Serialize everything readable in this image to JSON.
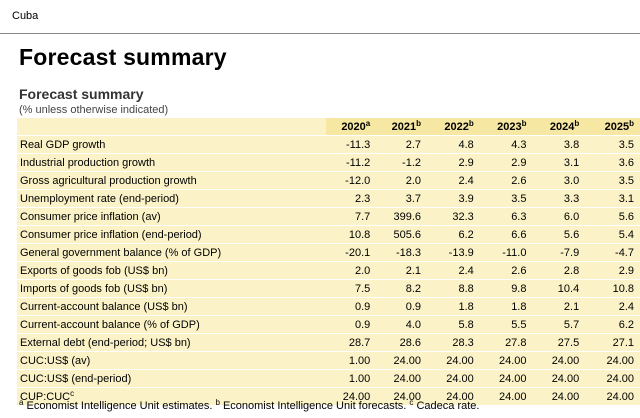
{
  "header": {
    "country": "Cuba"
  },
  "page": {
    "title": "Forecast summary",
    "table_title": "Forecast summary",
    "table_subtitle": "(% unless otherwise indicated)"
  },
  "table": {
    "columns": [
      {
        "year": "2020",
        "mark": "a"
      },
      {
        "year": "2021",
        "mark": "b"
      },
      {
        "year": "2022",
        "mark": "b"
      },
      {
        "year": "2023",
        "mark": "b"
      },
      {
        "year": "2024",
        "mark": "b"
      },
      {
        "year": "2025",
        "mark": "b"
      }
    ],
    "rows": [
      {
        "label": "Real GDP growth",
        "values": [
          "-11.3",
          "2.7",
          "4.8",
          "4.3",
          "3.8",
          "3.5"
        ]
      },
      {
        "label": "Industrial production growth",
        "values": [
          "-11.2",
          "-1.2",
          "2.9",
          "2.9",
          "3.1",
          "3.6"
        ]
      },
      {
        "label": "Gross agricultural production growth",
        "values": [
          "-12.0",
          "2.0",
          "2.4",
          "2.6",
          "3.0",
          "3.5"
        ]
      },
      {
        "label": "Unemployment rate (end-period)",
        "values": [
          "2.3",
          "3.7",
          "3.9",
          "3.5",
          "3.3",
          "3.1"
        ]
      },
      {
        "label": "Consumer price inflation (av)",
        "values": [
          "7.7",
          "399.6",
          "32.3",
          "6.3",
          "6.0",
          "5.6"
        ]
      },
      {
        "label": "Consumer price inflation (end-period)",
        "values": [
          "10.8",
          "505.6",
          "6.2",
          "6.6",
          "5.6",
          "5.4"
        ]
      },
      {
        "label": "General government balance (% of GDP)",
        "values": [
          "-20.1",
          "-18.3",
          "-13.9",
          "-11.0",
          "-7.9",
          "-4.7"
        ]
      },
      {
        "label": "Exports of goods fob (US$ bn)",
        "values": [
          "2.0",
          "2.1",
          "2.4",
          "2.6",
          "2.8",
          "2.9"
        ]
      },
      {
        "label": "Imports of goods fob (US$ bn)",
        "values": [
          "7.5",
          "8.2",
          "8.8",
          "9.8",
          "10.4",
          "10.8"
        ]
      },
      {
        "label": "Current-account balance (US$ bn)",
        "values": [
          "0.9",
          "0.9",
          "1.8",
          "1.8",
          "2.1",
          "2.4"
        ]
      },
      {
        "label": "Current-account balance (% of GDP)",
        "values": [
          "0.9",
          "4.0",
          "5.8",
          "5.5",
          "5.7",
          "6.2"
        ]
      },
      {
        "label": "External debt (end-period; US$ bn)",
        "values": [
          "28.7",
          "28.6",
          "28.3",
          "27.8",
          "27.5",
          "27.1"
        ]
      },
      {
        "label": "CUC:US$ (av)",
        "values": [
          "1.00",
          "24.00",
          "24.00",
          "24.00",
          "24.00",
          "24.00"
        ]
      },
      {
        "label": "CUC:US$ (end-period)",
        "values": [
          "1.00",
          "24.00",
          "24.00",
          "24.00",
          "24.00",
          "24.00"
        ]
      },
      {
        "label": "CUP:CUC",
        "label_mark": "c",
        "values": [
          "24.00",
          "24.00",
          "24.00",
          "24.00",
          "24.00",
          "24.00"
        ]
      }
    ]
  },
  "footnotes": {
    "a_mark": "a",
    "a_text": " Economist Intelligence Unit estimates. ",
    "b_mark": "b",
    "b_text": " Economist Intelligence Unit forecasts. ",
    "c_mark": "c",
    "c_text": " Cadeca rate."
  }
}
